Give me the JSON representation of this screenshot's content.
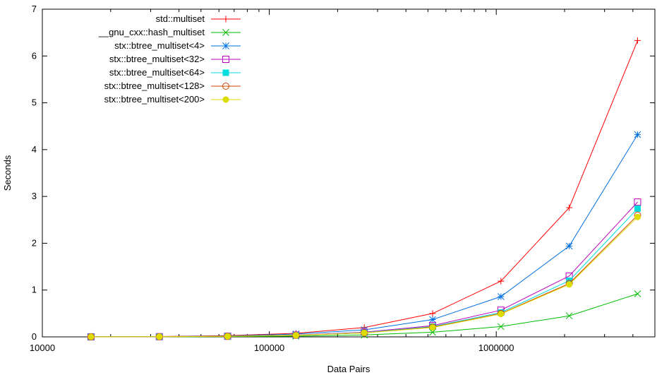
{
  "chart_data": {
    "type": "line",
    "title": "",
    "xlabel": "Data Pairs",
    "ylabel": "Seconds",
    "x_scale": "log",
    "xlim": [
      10000,
      5000000
    ],
    "ylim": [
      0,
      7
    ],
    "x_ticks": [
      10000,
      100000,
      1000000
    ],
    "x_tick_labels": [
      "10000",
      "100000",
      "1000000"
    ],
    "y_ticks": [
      0,
      1,
      2,
      3,
      4,
      5,
      6,
      7
    ],
    "y_tick_labels": [
      "0",
      "1",
      "2",
      "3",
      "4",
      "5",
      "6",
      "7"
    ],
    "grid": false,
    "legend_position": "top-left",
    "x": [
      16384,
      32768,
      65536,
      131072,
      262144,
      524288,
      1048576,
      2097152,
      4194304
    ],
    "series": [
      {
        "name": "std::multiset",
        "color": "#ff0000",
        "marker": "plus",
        "values": [
          0.002,
          0.008,
          0.025,
          0.075,
          0.2,
          0.5,
          1.19,
          2.76,
          6.33
        ]
      },
      {
        "name": "__gnu_cxx::hash_multiset",
        "color": "#00bb00",
        "marker": "cross",
        "values": [
          0.001,
          0.002,
          0.006,
          0.015,
          0.04,
          0.1,
          0.22,
          0.45,
          0.92
        ]
      },
      {
        "name": "stx::btree_multiset<4>",
        "color": "#0070e0",
        "marker": "star",
        "values": [
          0.002,
          0.006,
          0.02,
          0.06,
          0.15,
          0.37,
          0.86,
          1.94,
          4.32
        ]
      },
      {
        "name": "stx::btree_multiset<32>",
        "color": "#bb00bb",
        "marker": "square-open",
        "values": [
          0.001,
          0.004,
          0.013,
          0.038,
          0.1,
          0.24,
          0.57,
          1.3,
          2.88
        ]
      },
      {
        "name": "stx::btree_multiset<64>",
        "color": "#00dddd",
        "marker": "square-filled",
        "values": [
          0.001,
          0.004,
          0.012,
          0.035,
          0.09,
          0.22,
          0.52,
          1.2,
          2.74
        ]
      },
      {
        "name": "stx::btree_multiset<128>",
        "color": "#cc4400",
        "marker": "circle-open",
        "values": [
          0.001,
          0.004,
          0.011,
          0.033,
          0.085,
          0.21,
          0.5,
          1.14,
          2.6
        ]
      },
      {
        "name": "stx::btree_multiset<200>",
        "color": "#dddd00",
        "marker": "circle-filled",
        "values": [
          0.001,
          0.004,
          0.011,
          0.033,
          0.085,
          0.2,
          0.49,
          1.12,
          2.56
        ]
      }
    ]
  }
}
